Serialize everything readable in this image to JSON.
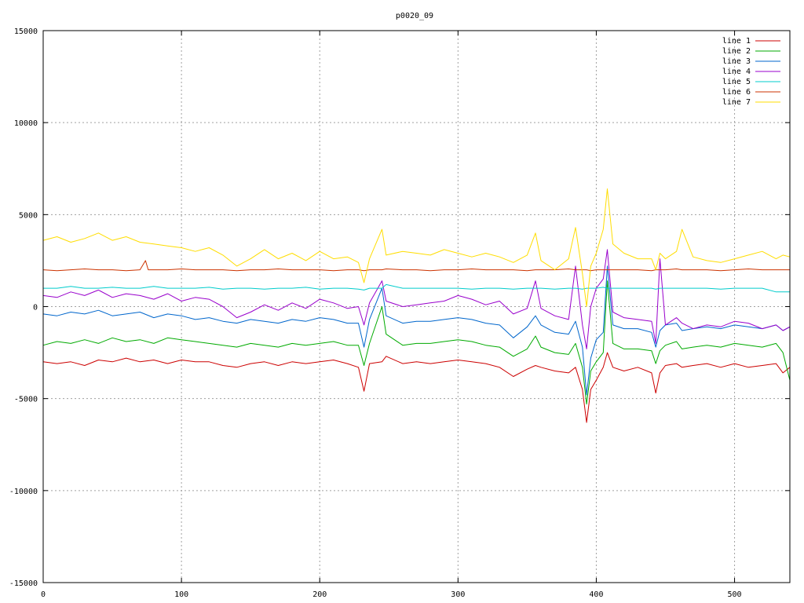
{
  "chart_data": {
    "type": "line",
    "title": "p0020_09",
    "xlabel": "",
    "ylabel": "",
    "xlim": [
      0,
      540
    ],
    "ylim": [
      -15000,
      15000
    ],
    "x_ticks": [
      0,
      100,
      200,
      300,
      400,
      500
    ],
    "y_ticks": [
      -15000,
      -10000,
      -5000,
      0,
      5000,
      10000,
      15000
    ],
    "grid": true,
    "legend_position": "top-right",
    "series": [
      {
        "name": "line 1",
        "color": "#cc0000",
        "x": [
          0,
          10,
          20,
          30,
          40,
          50,
          60,
          70,
          80,
          90,
          100,
          110,
          120,
          130,
          140,
          150,
          160,
          170,
          180,
          190,
          200,
          210,
          220,
          228,
          232,
          236,
          245,
          248,
          260,
          270,
          280,
          290,
          300,
          310,
          320,
          330,
          340,
          350,
          356,
          360,
          370,
          380,
          385,
          390,
          393,
          396,
          400,
          405,
          408,
          412,
          420,
          430,
          440,
          443,
          446,
          450,
          458,
          462,
          470,
          480,
          490,
          500,
          510,
          520,
          530,
          535,
          540
        ],
        "y": [
          -3000,
          -3100,
          -3000,
          -3200,
          -2900,
          -3000,
          -2800,
          -3000,
          -2900,
          -3100,
          -2900,
          -3000,
          -3000,
          -3200,
          -3300,
          -3100,
          -3000,
          -3200,
          -3000,
          -3100,
          -3000,
          -2900,
          -3100,
          -3300,
          -4600,
          -3100,
          -3000,
          -2700,
          -3100,
          -3000,
          -3100,
          -3000,
          -2900,
          -3000,
          -3100,
          -3300,
          -3800,
          -3400,
          -3200,
          -3300,
          -3500,
          -3600,
          -3300,
          -4500,
          -6300,
          -4500,
          -4000,
          -3300,
          -2500,
          -3300,
          -3500,
          -3300,
          -3600,
          -4700,
          -3600,
          -3200,
          -3100,
          -3300,
          -3200,
          -3100,
          -3300,
          -3100,
          -3300,
          -3200,
          -3100,
          -3600,
          -3300
        ]
      },
      {
        "name": "line 2",
        "color": "#00aa00",
        "x": [
          0,
          10,
          20,
          30,
          40,
          50,
          60,
          70,
          80,
          90,
          100,
          110,
          120,
          130,
          140,
          150,
          160,
          170,
          180,
          190,
          200,
          210,
          220,
          228,
          232,
          236,
          245,
          248,
          260,
          270,
          280,
          290,
          300,
          310,
          320,
          330,
          340,
          350,
          356,
          360,
          370,
          380,
          385,
          390,
          393,
          396,
          400,
          405,
          408,
          412,
          420,
          430,
          440,
          443,
          446,
          450,
          458,
          462,
          470,
          480,
          490,
          500,
          510,
          520,
          530,
          535,
          540
        ],
        "y": [
          -2100,
          -1900,
          -2000,
          -1800,
          -2000,
          -1700,
          -1900,
          -1800,
          -2000,
          -1700,
          -1800,
          -1900,
          -2000,
          -2100,
          -2200,
          -2000,
          -2100,
          -2200,
          -2000,
          -2100,
          -2000,
          -1900,
          -2100,
          -2100,
          -3200,
          -2000,
          0,
          -1500,
          -2100,
          -2000,
          -2000,
          -1900,
          -1800,
          -1900,
          -2100,
          -2200,
          -2700,
          -2300,
          -1600,
          -2200,
          -2500,
          -2600,
          -2000,
          -3300,
          -5300,
          -3500,
          -3000,
          -2500,
          1400,
          -2000,
          -2300,
          -2300,
          -2400,
          -3100,
          -2400,
          -2100,
          -1900,
          -2300,
          -2200,
          -2100,
          -2200,
          -2000,
          -2100,
          -2200,
          -2000,
          -2500,
          -4000
        ]
      },
      {
        "name": "line 3",
        "color": "#0066cc",
        "x": [
          0,
          10,
          20,
          30,
          40,
          50,
          60,
          70,
          80,
          90,
          100,
          110,
          120,
          130,
          140,
          150,
          160,
          170,
          180,
          190,
          200,
          210,
          220,
          228,
          232,
          236,
          245,
          248,
          260,
          270,
          280,
          290,
          300,
          310,
          320,
          330,
          340,
          350,
          356,
          360,
          370,
          380,
          385,
          390,
          393,
          396,
          400,
          405,
          408,
          412,
          420,
          430,
          440,
          443,
          446,
          450,
          458,
          462,
          470,
          480,
          490,
          500,
          510,
          520,
          530,
          535,
          540
        ],
        "y": [
          -400,
          -500,
          -300,
          -400,
          -200,
          -500,
          -400,
          -300,
          -600,
          -400,
          -500,
          -700,
          -600,
          -800,
          -900,
          -700,
          -800,
          -900,
          -700,
          -800,
          -600,
          -700,
          -900,
          -900,
          -2200,
          -700,
          1000,
          -500,
          -900,
          -800,
          -800,
          -700,
          -600,
          -700,
          -900,
          -1000,
          -1700,
          -1100,
          -500,
          -1000,
          -1400,
          -1500,
          -800,
          -2200,
          -4800,
          -2800,
          -1800,
          -1400,
          2200,
          -1000,
          -1200,
          -1200,
          -1400,
          -2200,
          -1300,
          -1000,
          -900,
          -1300,
          -1200,
          -1100,
          -1200,
          -1000,
          -1100,
          -1200,
          -1000,
          -1300,
          -1100
        ]
      },
      {
        "name": "line 4",
        "color": "#9900cc",
        "x": [
          0,
          10,
          20,
          30,
          40,
          50,
          60,
          70,
          80,
          90,
          100,
          110,
          120,
          130,
          140,
          150,
          160,
          170,
          180,
          190,
          200,
          210,
          220,
          228,
          232,
          236,
          245,
          248,
          260,
          270,
          280,
          290,
          300,
          310,
          320,
          330,
          340,
          350,
          356,
          360,
          370,
          380,
          385,
          390,
          393,
          396,
          400,
          405,
          408,
          412,
          420,
          430,
          440,
          443,
          446,
          450,
          458,
          462,
          470,
          480,
          490,
          500,
          510,
          520,
          530,
          535,
          540
        ],
        "y": [
          600,
          500,
          800,
          600,
          900,
          500,
          700,
          600,
          400,
          700,
          300,
          500,
          400,
          0,
          -600,
          -300,
          100,
          -200,
          200,
          -100,
          400,
          200,
          -100,
          0,
          -1000,
          200,
          1400,
          300,
          0,
          100,
          200,
          300,
          600,
          400,
          100,
          300,
          -400,
          -100,
          1400,
          -100,
          -500,
          -700,
          2200,
          -1000,
          -2300,
          0,
          1000,
          1500,
          3100,
          -300,
          -600,
          -700,
          -800,
          -2000,
          2600,
          -1000,
          -600,
          -900,
          -1200,
          -1000,
          -1100,
          -800,
          -900,
          -1200,
          -1000,
          -1300,
          -1100
        ]
      },
      {
        "name": "line 5",
        "color": "#00cccc",
        "x": [
          0,
          10,
          20,
          30,
          40,
          50,
          60,
          70,
          80,
          90,
          100,
          110,
          120,
          130,
          140,
          150,
          160,
          170,
          180,
          190,
          200,
          210,
          220,
          228,
          232,
          236,
          245,
          248,
          260,
          270,
          280,
          290,
          300,
          310,
          320,
          330,
          340,
          350,
          356,
          360,
          370,
          380,
          385,
          390,
          393,
          396,
          400,
          405,
          408,
          412,
          420,
          430,
          440,
          443,
          446,
          450,
          458,
          462,
          470,
          480,
          490,
          500,
          510,
          520,
          530,
          535,
          540
        ],
        "y": [
          1000,
          1000,
          1100,
          1000,
          1000,
          1050,
          1000,
          1000,
          1100,
          1000,
          1000,
          1000,
          1050,
          950,
          1000,
          1000,
          950,
          1000,
          1000,
          1050,
          950,
          1000,
          1000,
          950,
          900,
          1000,
          1000,
          1200,
          1000,
          1000,
          1000,
          1000,
          1000,
          950,
          1000,
          1000,
          950,
          1000,
          1000,
          1000,
          950,
          1000,
          1000,
          950,
          1000,
          1000,
          1000,
          1050,
          1000,
          1000,
          1000,
          1000,
          1000,
          950,
          1000,
          1000,
          1000,
          1000,
          1000,
          1000,
          950,
          1000,
          1000,
          1000,
          800,
          800,
          800
        ]
      },
      {
        "name": "line 6",
        "color": "#cc3300",
        "x": [
          0,
          10,
          20,
          30,
          40,
          50,
          60,
          70,
          74,
          76,
          80,
          90,
          100,
          110,
          120,
          130,
          140,
          150,
          160,
          170,
          180,
          190,
          200,
          210,
          220,
          228,
          232,
          236,
          245,
          248,
          260,
          270,
          280,
          290,
          300,
          310,
          320,
          330,
          340,
          350,
          356,
          360,
          370,
          380,
          385,
          390,
          393,
          396,
          400,
          405,
          408,
          412,
          420,
          430,
          440,
          443,
          446,
          450,
          458,
          462,
          470,
          480,
          490,
          500,
          510,
          520,
          530,
          535,
          540
        ],
        "y": [
          2000,
          1950,
          2000,
          2050,
          2000,
          2000,
          1950,
          2000,
          2500,
          2000,
          2000,
          2000,
          2050,
          2000,
          2000,
          2000,
          1950,
          2000,
          2000,
          2050,
          2000,
          2000,
          2000,
          1950,
          2000,
          2000,
          1950,
          2000,
          2000,
          2050,
          2000,
          2000,
          1950,
          2000,
          2000,
          2050,
          2000,
          2000,
          2000,
          1950,
          2000,
          2000,
          2000,
          2050,
          2000,
          2000,
          2000,
          1950,
          2000,
          2000,
          2000,
          2000,
          2000,
          2000,
          1950,
          2000,
          2000,
          2000,
          2050,
          2000,
          2000,
          2000,
          1950,
          2000,
          2050,
          2000,
          2000,
          2000,
          2000
        ]
      },
      {
        "name": "line 7",
        "color": "#ffdd00",
        "x": [
          0,
          10,
          20,
          30,
          40,
          50,
          60,
          70,
          80,
          90,
          100,
          110,
          120,
          130,
          140,
          150,
          160,
          170,
          180,
          190,
          200,
          210,
          220,
          228,
          232,
          236,
          245,
          248,
          260,
          270,
          280,
          290,
          300,
          310,
          320,
          330,
          340,
          350,
          356,
          360,
          370,
          380,
          385,
          390,
          393,
          396,
          400,
          405,
          408,
          412,
          420,
          430,
          440,
          443,
          446,
          450,
          458,
          462,
          470,
          480,
          490,
          500,
          510,
          520,
          530,
          535,
          540
        ],
        "y": [
          3600,
          3800,
          3500,
          3700,
          4000,
          3600,
          3800,
          3500,
          3400,
          3300,
          3200,
          3000,
          3200,
          2800,
          2200,
          2600,
          3100,
          2600,
          2900,
          2500,
          3000,
          2600,
          2700,
          2400,
          1300,
          2600,
          4200,
          2800,
          3000,
          2900,
          2800,
          3100,
          2900,
          2700,
          2900,
          2700,
          2400,
          2800,
          4000,
          2500,
          2000,
          2600,
          4300,
          1800,
          0,
          2200,
          2900,
          4200,
          6400,
          3400,
          2900,
          2600,
          2600,
          2000,
          2900,
          2600,
          3000,
          4200,
          2700,
          2500,
          2400,
          2600,
          2800,
          3000,
          2600,
          2800,
          2700
        ]
      }
    ]
  }
}
